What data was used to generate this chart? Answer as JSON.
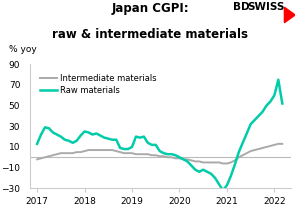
{
  "title_line1": "Japan CGPI:",
  "title_line2": "raw & intermediate materials",
  "ylabel": "% yoy",
  "ylim": [
    -30,
    90
  ],
  "yticks": [
    -30,
    -10,
    10,
    30,
    50,
    70,
    90
  ],
  "xlim": [
    2016.85,
    2022.35
  ],
  "bg_color": "#ffffff",
  "plot_bg_color": "#ffffff",
  "intermediate_color": "#aaaaaa",
  "raw_color": "#00ccaa",
  "zero_line_color": "#bbbbbb",
  "raw_materials": {
    "x": [
      2017.0,
      2017.083,
      2017.167,
      2017.25,
      2017.333,
      2017.417,
      2017.5,
      2017.583,
      2017.667,
      2017.75,
      2017.833,
      2017.917,
      2018.0,
      2018.083,
      2018.167,
      2018.25,
      2018.333,
      2018.417,
      2018.5,
      2018.583,
      2018.667,
      2018.75,
      2018.833,
      2018.917,
      2019.0,
      2019.083,
      2019.167,
      2019.25,
      2019.333,
      2019.417,
      2019.5,
      2019.583,
      2019.667,
      2019.75,
      2019.833,
      2019.917,
      2020.0,
      2020.083,
      2020.167,
      2020.25,
      2020.333,
      2020.417,
      2020.5,
      2020.583,
      2020.667,
      2020.75,
      2020.833,
      2020.917,
      2021.0,
      2021.083,
      2021.167,
      2021.25,
      2021.333,
      2021.417,
      2021.5,
      2021.583,
      2021.667,
      2021.75,
      2021.833,
      2021.917,
      2022.0,
      2022.083,
      2022.167
    ],
    "y": [
      13,
      22,
      29,
      28,
      24,
      22,
      20,
      17,
      16,
      14,
      16,
      21,
      25,
      24,
      22,
      23,
      21,
      19,
      18,
      17,
      17,
      9,
      8,
      8,
      10,
      20,
      19,
      20,
      14,
      12,
      12,
      6,
      4,
      3,
      3,
      2,
      0,
      -2,
      -4,
      -8,
      -12,
      -14,
      -12,
      -14,
      -16,
      -20,
      -26,
      -32,
      -27,
      -18,
      -7,
      5,
      14,
      23,
      32,
      36,
      40,
      44,
      50,
      54,
      60,
      75,
      52
    ]
  },
  "intermediate_materials": {
    "x": [
      2017.0,
      2017.083,
      2017.167,
      2017.25,
      2017.333,
      2017.417,
      2017.5,
      2017.583,
      2017.667,
      2017.75,
      2017.833,
      2017.917,
      2018.0,
      2018.083,
      2018.167,
      2018.25,
      2018.333,
      2018.417,
      2018.5,
      2018.583,
      2018.667,
      2018.75,
      2018.833,
      2018.917,
      2019.0,
      2019.083,
      2019.167,
      2019.25,
      2019.333,
      2019.417,
      2019.5,
      2019.583,
      2019.667,
      2019.75,
      2019.833,
      2019.917,
      2020.0,
      2020.083,
      2020.167,
      2020.25,
      2020.333,
      2020.417,
      2020.5,
      2020.583,
      2020.667,
      2020.75,
      2020.833,
      2020.917,
      2021.0,
      2021.083,
      2021.167,
      2021.25,
      2021.333,
      2021.417,
      2021.5,
      2021.583,
      2021.667,
      2021.75,
      2021.833,
      2021.917,
      2022.0,
      2022.083,
      2022.167
    ],
    "y": [
      -2,
      -1,
      0,
      1,
      2,
      3,
      4,
      4,
      4,
      4,
      5,
      5,
      6,
      7,
      7,
      7,
      7,
      7,
      7,
      7,
      6,
      5,
      4,
      4,
      4,
      3,
      3,
      3,
      3,
      2,
      2,
      1,
      1,
      0,
      0,
      -1,
      -1,
      -2,
      -2,
      -3,
      -4,
      -4,
      -5,
      -5,
      -5,
      -5,
      -5,
      -6,
      -6,
      -5,
      -3,
      0,
      2,
      4,
      6,
      7,
      8,
      9,
      10,
      11,
      12,
      13,
      13
    ]
  }
}
